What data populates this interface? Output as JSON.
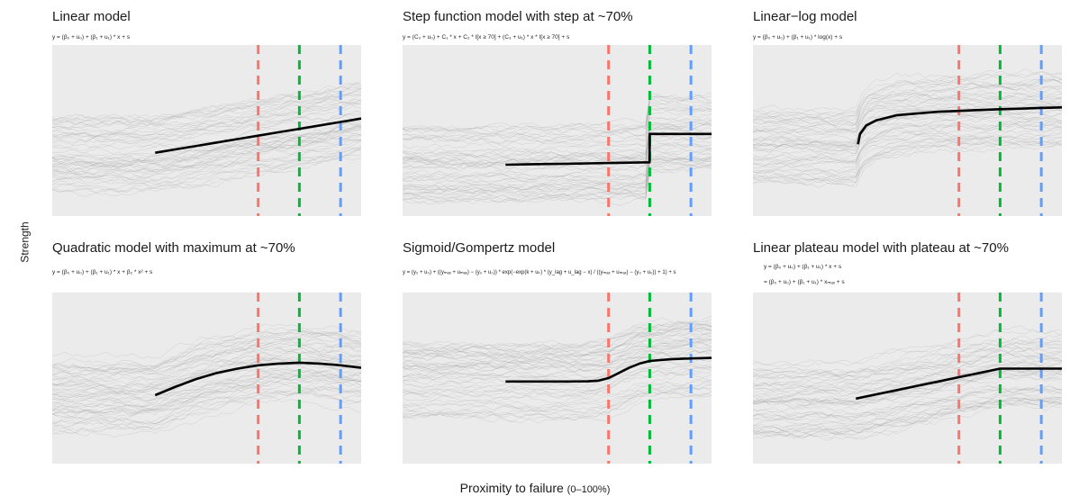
{
  "chart_data": [
    {
      "type": "line",
      "title": "Linear model",
      "formula": "y = (β₀ + u₀) + (β₁ + u₁) * x + s",
      "x": [
        0,
        10,
        20,
        30,
        40,
        50,
        60,
        70,
        80,
        90,
        100
      ],
      "series": [
        {
          "values": [
            0.37,
            0.39,
            0.41,
            0.43,
            0.45,
            0.47,
            0.49,
            0.51,
            0.53,
            0.55,
            0.57
          ]
        }
      ],
      "vlines": [
        {
          "x": 50,
          "color": "#f8766d"
        },
        {
          "x": 70,
          "color": "#00ba38"
        },
        {
          "x": 90,
          "color": "#619cff"
        }
      ],
      "xlim": [
        -50,
        100
      ],
      "ylim": [
        0,
        1
      ],
      "grid": false
    },
    {
      "type": "line",
      "title": "Step function model with step at ~70%",
      "formula": "y = (C₀ + u₀) + C₁ * x + C₂ * I[x ≥ 70] + (C₃ + u₁) * x * I[x ≥ 70] + s",
      "x": [
        0,
        10,
        20,
        30,
        40,
        50,
        60,
        69.9,
        70,
        80,
        90,
        100
      ],
      "series": [
        {
          "values": [
            0.3,
            0.302,
            0.304,
            0.306,
            0.308,
            0.31,
            0.312,
            0.314,
            0.48,
            0.48,
            0.48,
            0.48
          ]
        }
      ],
      "vlines": [
        {
          "x": 50,
          "color": "#f8766d"
        },
        {
          "x": 70,
          "color": "#00ba38"
        },
        {
          "x": 90,
          "color": "#619cff"
        }
      ],
      "xlim": [
        -50,
        100
      ],
      "ylim": [
        0,
        1
      ],
      "grid": false
    },
    {
      "type": "line",
      "title": "Linear−log model",
      "formula": "y = (β₀ + u₀) + (β₁ + u₁) * log(x) + s",
      "x": [
        1,
        2,
        5,
        10,
        20,
        30,
        40,
        50,
        60,
        70,
        80,
        90,
        100
      ],
      "series": [
        {
          "values": [
            0.42,
            0.48,
            0.53,
            0.56,
            0.59,
            0.6,
            0.61,
            0.615,
            0.62,
            0.625,
            0.628,
            0.632,
            0.635
          ]
        }
      ],
      "vlines": [
        {
          "x": 50,
          "color": "#f8766d"
        },
        {
          "x": 70,
          "color": "#00ba38"
        },
        {
          "x": 90,
          "color": "#619cff"
        }
      ],
      "xlim": [
        -50,
        100
      ],
      "ylim": [
        0,
        1
      ],
      "grid": false
    },
    {
      "type": "line",
      "title": "Quadratic model with maximum at ~70%",
      "formula": "y = (β₀ + u₀) + (β₁ + u₁) * x + β₂ * x² + s",
      "x": [
        0,
        10,
        20,
        30,
        40,
        50,
        60,
        70,
        80,
        90,
        100
      ],
      "series": [
        {
          "values": [
            0.4,
            0.45,
            0.495,
            0.53,
            0.555,
            0.575,
            0.585,
            0.59,
            0.585,
            0.575,
            0.56
          ]
        }
      ],
      "vlines": [
        {
          "x": 50,
          "color": "#f8766d"
        },
        {
          "x": 70,
          "color": "#00ba38"
        },
        {
          "x": 90,
          "color": "#619cff"
        }
      ],
      "xlim": [
        -50,
        100
      ],
      "ylim": [
        0,
        1
      ],
      "grid": false
    },
    {
      "type": "line",
      "title": "Sigmoid/Gompertz model",
      "formula": "y = (y₀ + u₀) + ((yₘₐₓ + uₘₐₓ) − (y₀ + u₀)) * exp(−exp(k + uₖ) * (y_lag + u_lag − x) / ((yₘₐₓ + uₘₐₓ) − (y₀ + u₀)) + 1) + s",
      "x": [
        0,
        10,
        20,
        30,
        40,
        45,
        50,
        55,
        60,
        65,
        70,
        80,
        90,
        100
      ],
      "series": [
        {
          "values": [
            0.48,
            0.48,
            0.48,
            0.48,
            0.481,
            0.485,
            0.5,
            0.53,
            0.56,
            0.585,
            0.6,
            0.61,
            0.615,
            0.618
          ]
        }
      ],
      "vlines": [
        {
          "x": 50,
          "color": "#f8766d"
        },
        {
          "x": 70,
          "color": "#00ba38"
        },
        {
          "x": 90,
          "color": "#619cff"
        }
      ],
      "xlim": [
        -50,
        100
      ],
      "ylim": [
        0,
        1
      ],
      "grid": false
    },
    {
      "type": "line",
      "title": "Linear plateau model with plateau at ~70%",
      "formula": "y = (β₀ + u₀) + (β₁ + u₁) * x + s",
      "formula2": "= (β₀ + u₀) + (β₁ + u₁) * xₘₐₓ + s",
      "x": [
        0,
        10,
        20,
        30,
        40,
        50,
        60,
        70,
        80,
        90,
        100
      ],
      "series": [
        {
          "values": [
            0.38,
            0.405,
            0.43,
            0.455,
            0.48,
            0.505,
            0.53,
            0.555,
            0.555,
            0.555,
            0.555
          ]
        }
      ],
      "vlines": [
        {
          "x": 50,
          "color": "#f8766d"
        },
        {
          "x": 70,
          "color": "#00ba38"
        },
        {
          "x": 90,
          "color": "#619cff"
        }
      ],
      "xlim": [
        -50,
        100
      ],
      "ylim": [
        0,
        1
      ],
      "grid": false
    }
  ],
  "ylabel": "Strength",
  "xlabel": "Proximity to failure",
  "xlabel_unit": "(0–100%)",
  "colors": {
    "panel_bg": "#ebebeb",
    "mean_line": "#000000",
    "individual_lines": "#9a9a9a",
    "red_dashed": "#f8766d",
    "green_dashed": "#00ba38",
    "blue_dashed": "#619cff"
  }
}
